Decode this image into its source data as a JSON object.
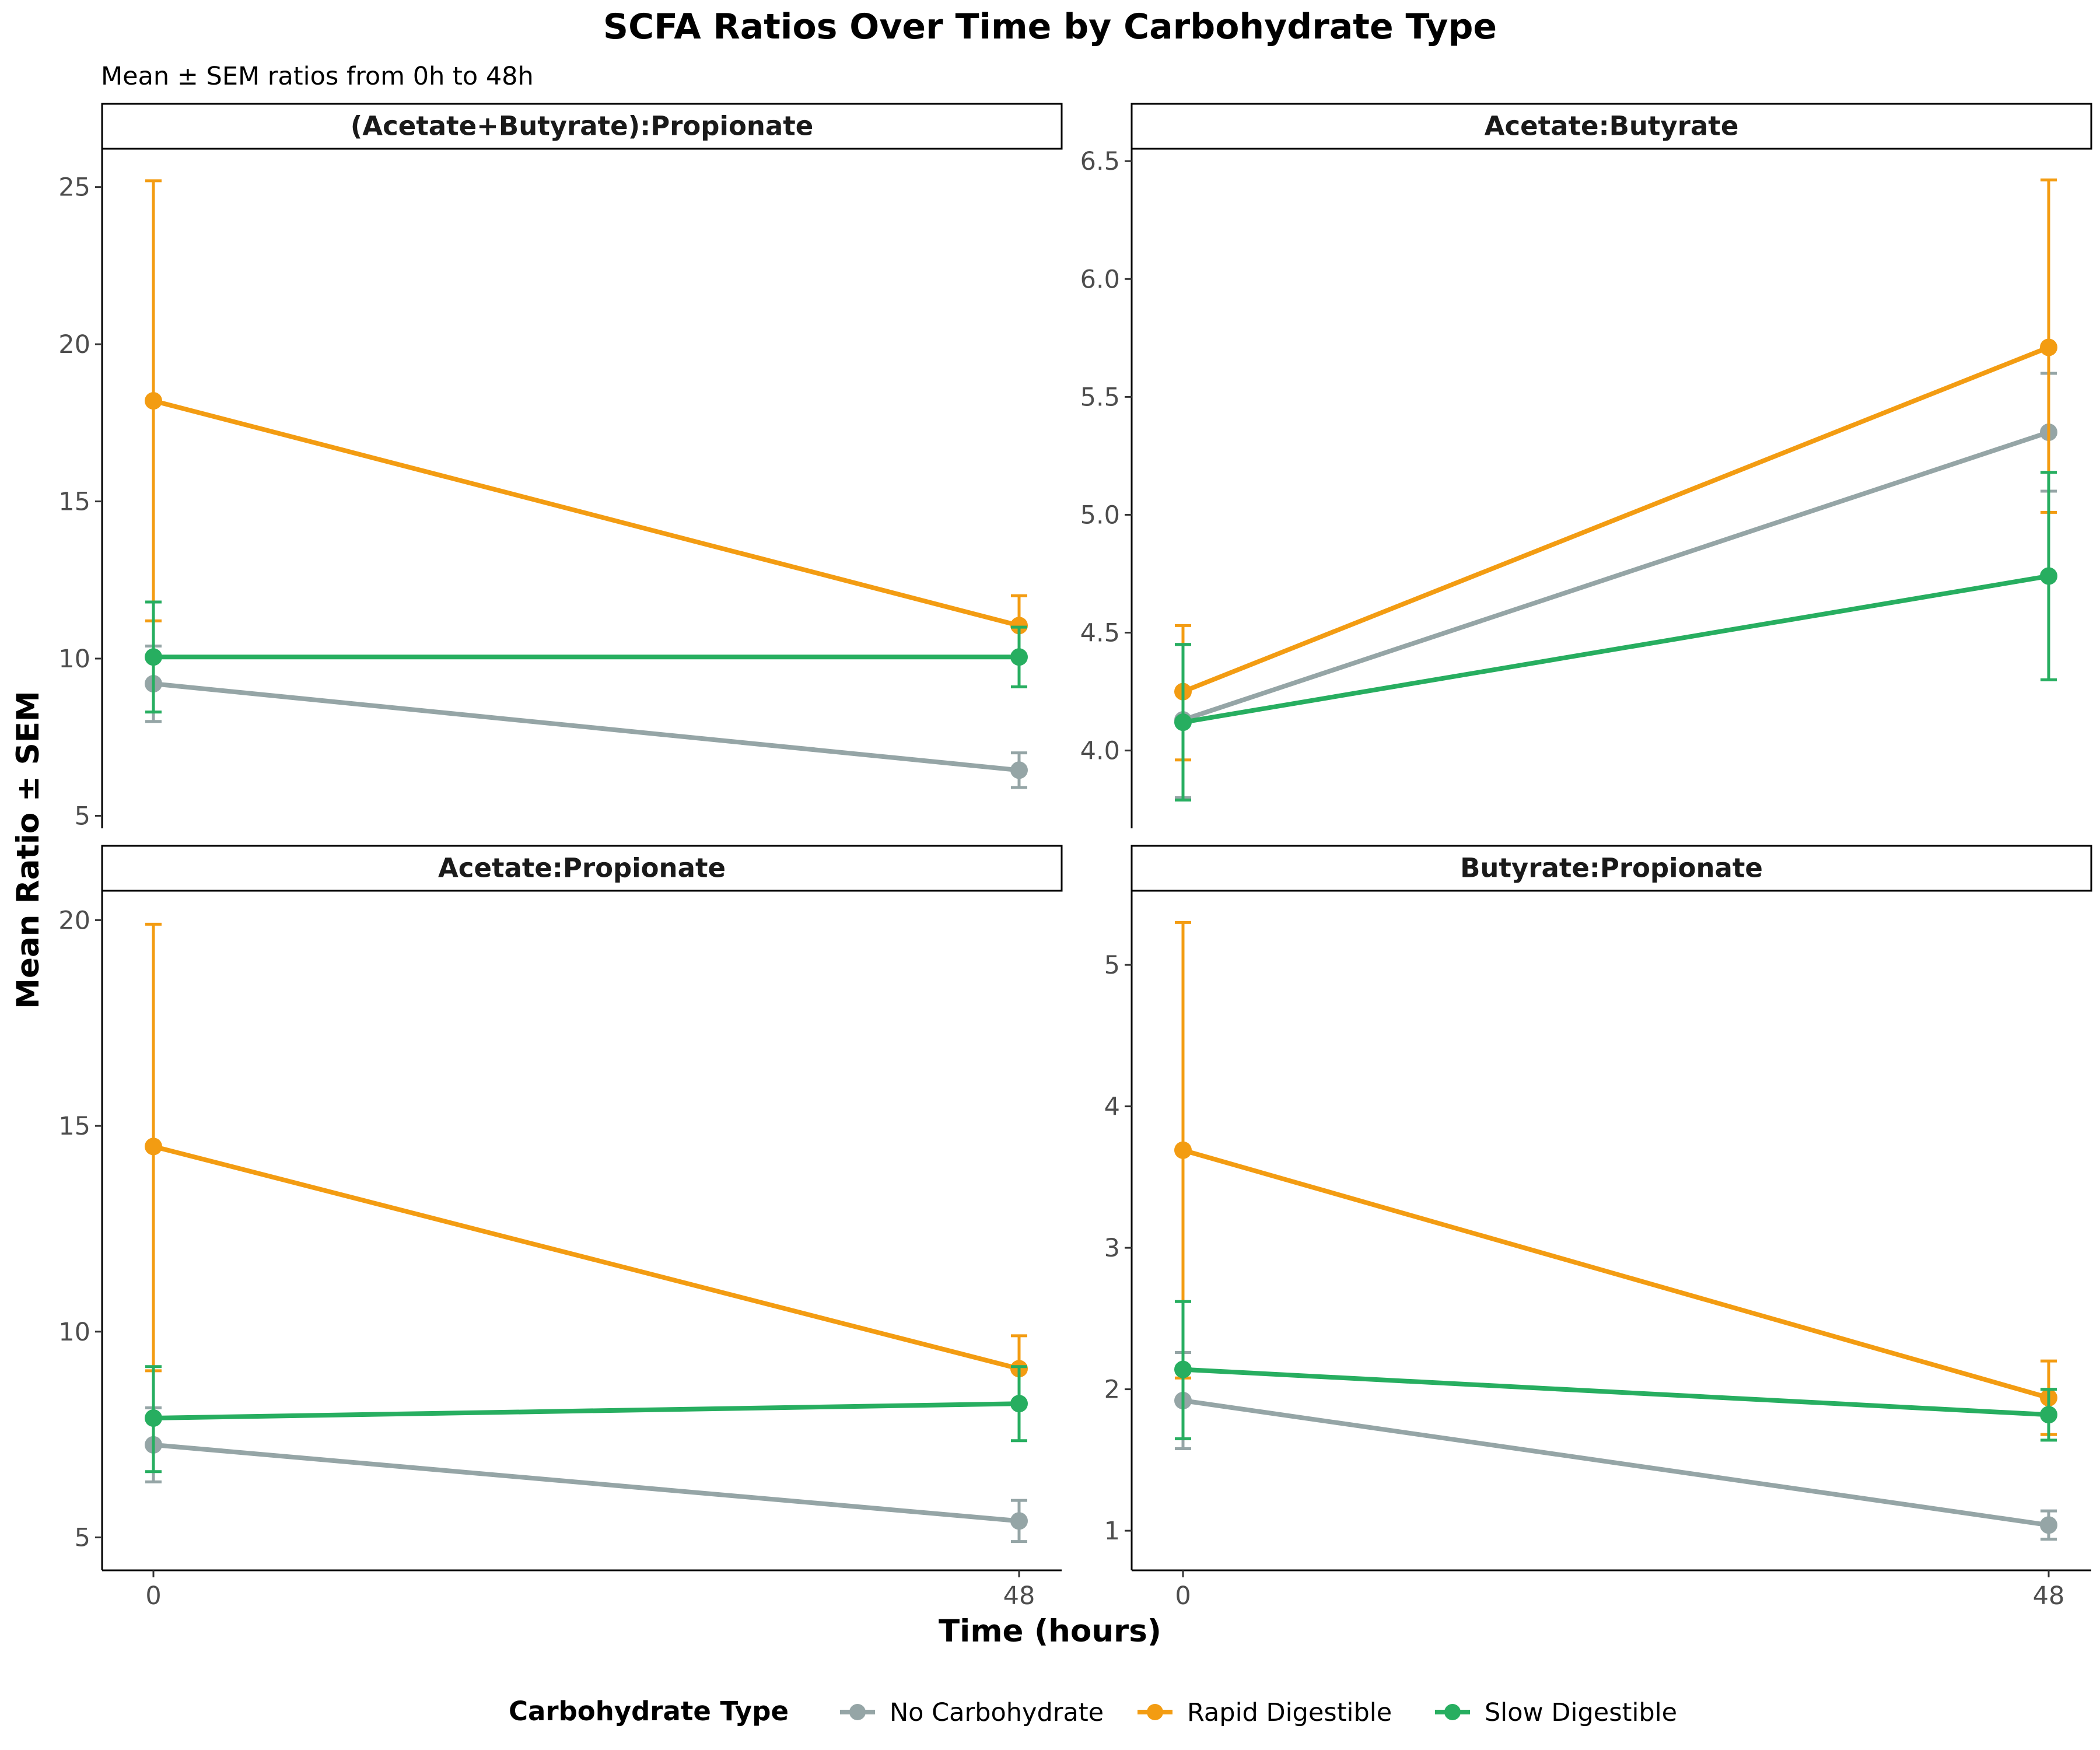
{
  "chart": {
    "title": "SCFA Ratios Over Time by Carbohydrate Type",
    "subtitle": "Mean ± SEM ratios from 0h to 48h",
    "xlabel": "Time (hours)",
    "ylabel": "Mean Ratio ± SEM"
  },
  "legend": {
    "title": "Carbohydrate Type",
    "position": "bottom",
    "items": [
      {
        "label": "No Carbohydrate",
        "color": "#95A5A6"
      },
      {
        "label": "Rapid Digestible",
        "color": "#F39C12"
      },
      {
        "label": "Slow Digestible",
        "color": "#27AE60"
      }
    ]
  },
  "chart_data": [
    {
      "type": "line",
      "panel": "(Acetate+Butyrate):Propionate",
      "x": [
        0,
        48
      ],
      "x_ticks": [
        "0",
        "48"
      ],
      "y_ticks": [
        5,
        10,
        15,
        20,
        25
      ],
      "ylim": [
        4.6,
        26.2
      ],
      "series": [
        {
          "name": "No Carbohydrate",
          "color": "#95A5A6",
          "mean": [
            9.2,
            6.45
          ],
          "lower": [
            8.0,
            5.9
          ],
          "upper": [
            10.4,
            7.0
          ]
        },
        {
          "name": "Rapid Digestible",
          "color": "#F39C12",
          "mean": [
            18.2,
            11.05
          ],
          "lower": [
            11.2,
            10.1
          ],
          "upper": [
            25.2,
            12.0
          ]
        },
        {
          "name": "Slow Digestible",
          "color": "#27AE60",
          "mean": [
            10.05,
            10.05
          ],
          "lower": [
            8.3,
            9.1
          ],
          "upper": [
            11.8,
            11.0
          ]
        }
      ]
    },
    {
      "type": "line",
      "panel": "Acetate:Butyrate",
      "x": [
        0,
        48
      ],
      "x_ticks": [
        "0",
        "48"
      ],
      "y_ticks": [
        4.0,
        4.5,
        5.0,
        5.5,
        6.0,
        6.5
      ],
      "ylim": [
        3.67,
        6.55
      ],
      "series": [
        {
          "name": "No Carbohydrate",
          "color": "#95A5A6",
          "mean": [
            4.13,
            5.35
          ],
          "lower": [
            3.8,
            5.1
          ],
          "upper": [
            4.45,
            5.6
          ]
        },
        {
          "name": "Rapid Digestible",
          "color": "#F39C12",
          "mean": [
            4.25,
            5.71
          ],
          "lower": [
            3.96,
            5.01
          ],
          "upper": [
            4.53,
            6.42
          ]
        },
        {
          "name": "Slow Digestible",
          "color": "#27AE60",
          "mean": [
            4.12,
            4.74
          ],
          "lower": [
            3.79,
            4.3
          ],
          "upper": [
            4.45,
            5.18
          ]
        }
      ]
    },
    {
      "type": "line",
      "panel": "Acetate:Propionate",
      "x": [
        0,
        48
      ],
      "x_ticks": [
        "0",
        "48"
      ],
      "y_ticks": [
        5,
        10,
        15,
        20
      ],
      "ylim": [
        4.2,
        20.7
      ],
      "series": [
        {
          "name": "No Carbohydrate",
          "color": "#95A5A6",
          "mean": [
            7.25,
            5.4
          ],
          "lower": [
            6.35,
            4.9
          ],
          "upper": [
            8.15,
            5.9
          ]
        },
        {
          "name": "Rapid Digestible",
          "color": "#F39C12",
          "mean": [
            14.5,
            9.1
          ],
          "lower": [
            9.05,
            8.3
          ],
          "upper": [
            19.9,
            9.9
          ]
        },
        {
          "name": "Slow Digestible",
          "color": "#27AE60",
          "mean": [
            7.9,
            8.25
          ],
          "lower": [
            6.6,
            7.35
          ],
          "upper": [
            9.15,
            9.15
          ]
        }
      ]
    },
    {
      "type": "line",
      "panel": "Butyrate:Propionate",
      "x": [
        0,
        48
      ],
      "x_ticks": [
        "0",
        "48"
      ],
      "y_ticks": [
        1,
        2,
        3,
        4,
        5
      ],
      "ylim": [
        0.72,
        5.52
      ],
      "series": [
        {
          "name": "No Carbohydrate",
          "color": "#95A5A6",
          "mean": [
            1.92,
            1.04
          ],
          "lower": [
            1.58,
            0.94
          ],
          "upper": [
            2.26,
            1.14
          ]
        },
        {
          "name": "Rapid Digestible",
          "color": "#F39C12",
          "mean": [
            3.69,
            1.94
          ],
          "lower": [
            2.08,
            1.68
          ],
          "upper": [
            5.3,
            2.2
          ]
        },
        {
          "name": "Slow Digestible",
          "color": "#27AE60",
          "mean": [
            2.14,
            1.82
          ],
          "lower": [
            1.65,
            1.64
          ],
          "upper": [
            2.62,
            2.0
          ]
        }
      ]
    }
  ]
}
